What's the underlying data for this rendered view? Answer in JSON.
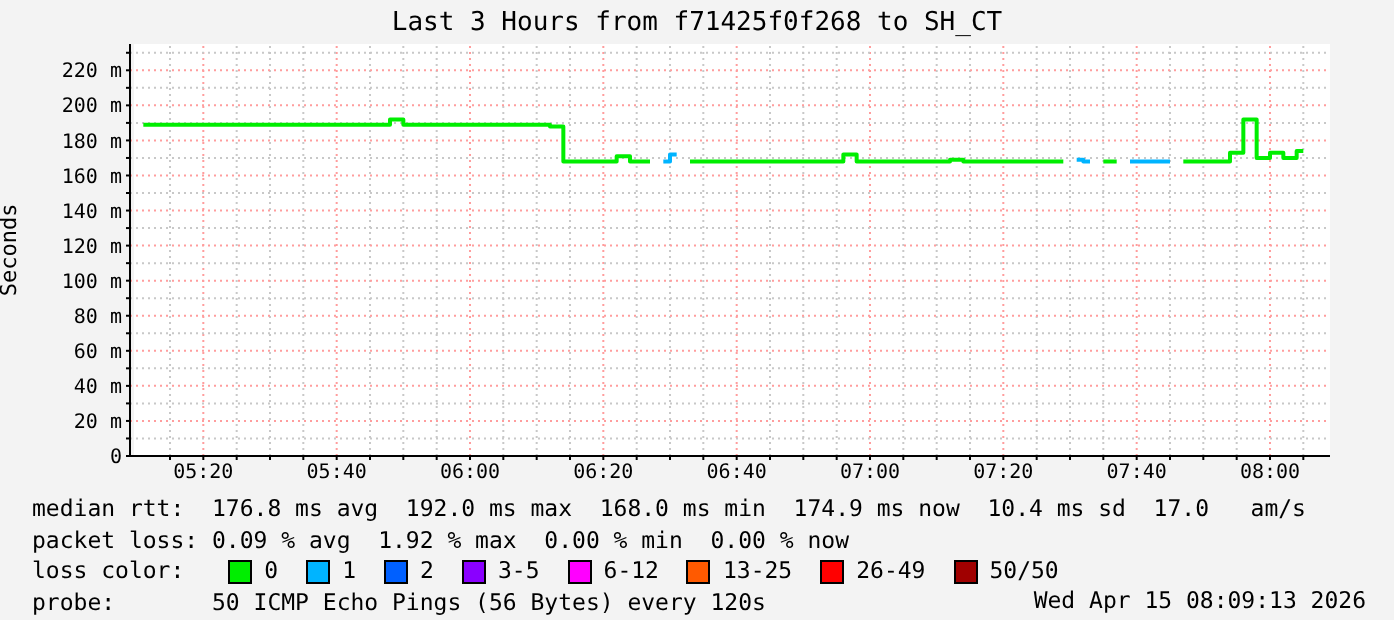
{
  "chart_data": {
    "type": "step",
    "title": "Last 3 Hours from f71425f0f268 to SH_CT",
    "ylabel": "Seconds",
    "legend_title": "loss color:",
    "xlim": [
      5.15,
      8.15
    ],
    "xticks": [
      {
        "value": 5.25,
        "label": null
      },
      {
        "value": 5.3333,
        "label": "05:20"
      },
      {
        "value": 5.4167,
        "label": null
      },
      {
        "value": 5.5,
        "label": null
      },
      {
        "value": 5.5833,
        "label": null
      },
      {
        "value": 5.6667,
        "label": "05:40"
      },
      {
        "value": 5.75,
        "label": null
      },
      {
        "value": 5.8333,
        "label": null
      },
      {
        "value": 5.9167,
        "label": null
      },
      {
        "value": 6.0,
        "label": "06:00"
      },
      {
        "value": 6.0833,
        "label": null
      },
      {
        "value": 6.1667,
        "label": null
      },
      {
        "value": 6.25,
        "label": null
      },
      {
        "value": 6.3333,
        "label": "06:20"
      },
      {
        "value": 6.4167,
        "label": null
      },
      {
        "value": 6.5,
        "label": null
      },
      {
        "value": 6.5833,
        "label": null
      },
      {
        "value": 6.6667,
        "label": "06:40"
      },
      {
        "value": 6.75,
        "label": null
      },
      {
        "value": 6.8333,
        "label": null
      },
      {
        "value": 6.9167,
        "label": null
      },
      {
        "value": 7.0,
        "label": "07:00"
      },
      {
        "value": 7.0833,
        "label": null
      },
      {
        "value": 7.1667,
        "label": null
      },
      {
        "value": 7.25,
        "label": null
      },
      {
        "value": 7.3333,
        "label": "07:20"
      },
      {
        "value": 7.4167,
        "label": null
      },
      {
        "value": 7.5,
        "label": null
      },
      {
        "value": 7.5833,
        "label": null
      },
      {
        "value": 7.6667,
        "label": "07:40"
      },
      {
        "value": 7.75,
        "label": null
      },
      {
        "value": 7.8333,
        "label": null
      },
      {
        "value": 7.9167,
        "label": null
      },
      {
        "value": 8.0,
        "label": "08:00"
      },
      {
        "value": 8.0833,
        "label": null
      }
    ],
    "ylim": [
      0,
      235
    ],
    "yticks": [
      0,
      {
        "value": 10,
        "label": null
      },
      {
        "value": 20,
        "label": "20 m"
      },
      {
        "value": 30,
        "label": null
      },
      {
        "value": 40,
        "label": "40 m"
      },
      {
        "value": 50,
        "label": null
      },
      {
        "value": 60,
        "label": "60 m"
      },
      {
        "value": 70,
        "label": null
      },
      {
        "value": 80,
        "label": "80 m"
      },
      {
        "value": 90,
        "label": null
      },
      {
        "value": 100,
        "label": "100 m"
      },
      {
        "value": 110,
        "label": null
      },
      {
        "value": 120,
        "label": "120 m"
      },
      {
        "value": 130,
        "label": null
      },
      {
        "value": 140,
        "label": "140 m"
      },
      {
        "value": 150,
        "label": null
      },
      {
        "value": 160,
        "label": "160 m"
      },
      {
        "value": 170,
        "label": null
      },
      {
        "value": 180,
        "label": "180 m"
      },
      {
        "value": 190,
        "label": null
      },
      {
        "value": 200,
        "label": "200 m"
      },
      {
        "value": 210,
        "label": null
      },
      {
        "value": 220,
        "label": "220 m"
      },
      {
        "value": 230,
        "label": null
      }
    ],
    "grid": true,
    "legend": "bottom",
    "marker": "none",
    "line_style": "solid",
    "series": [
      {
        "name": "0",
        "color": "#00ee00",
        "x": [
          5.1833,
          5.7833,
          5.8167,
          5.85,
          6.1833,
          6.2167,
          6.25,
          6.35,
          6.3833,
          6.4167,
          6.45,
          6.5,
          6.55,
          6.9167,
          6.95,
          6.9833,
          7.1833,
          7.2167,
          7.25,
          7.4833,
          7.5167,
          7.5833,
          7.6167,
          7.6667,
          7.7833,
          7.8833,
          7.9167,
          7.95,
          7.9833,
          8.0167,
          8.05,
          8.0833
        ],
        "values": [
          189,
          189,
          192,
          189,
          189,
          188,
          168,
          168,
          171,
          168,
          168,
          null,
          168,
          168,
          172,
          168,
          168,
          169,
          168,
          168,
          null,
          168,
          168,
          null,
          168,
          168,
          173,
          192,
          170,
          173,
          170,
          174
        ]
      },
      {
        "name": "1",
        "color": "#00b4ff",
        "x": [
          6.4833,
          6.5167,
          6.55,
          7.5167,
          7.55,
          7.6,
          7.65,
          7.75
        ],
        "values": [
          168,
          172,
          null,
          169,
          168,
          null,
          168,
          168
        ]
      },
      {
        "name": "2",
        "color": "#0060ff"
      },
      {
        "name": "3-5",
        "color": "#8a00ff"
      },
      {
        "name": "6-12",
        "color": "#ff00ff"
      },
      {
        "name": "13-25",
        "color": "#ff5a00"
      },
      {
        "name": "26-49",
        "color": "#ff0000"
      },
      {
        "name": "50/50",
        "color": "#a00000"
      }
    ],
    "annotations": [
      "median rtt:  176.8 ms avg  192.0 ms max  168.0 ms min  174.9 ms now  10.4 ms sd  17.0   am/s",
      "packet loss: 0.09 % avg  1.92 % max  0.00 % min  0.00 % now",
      "probe:       50 ICMP Echo Pings (56 Bytes) every 120s",
      "Wed Apr 15 08:09:13 2026"
    ]
  }
}
